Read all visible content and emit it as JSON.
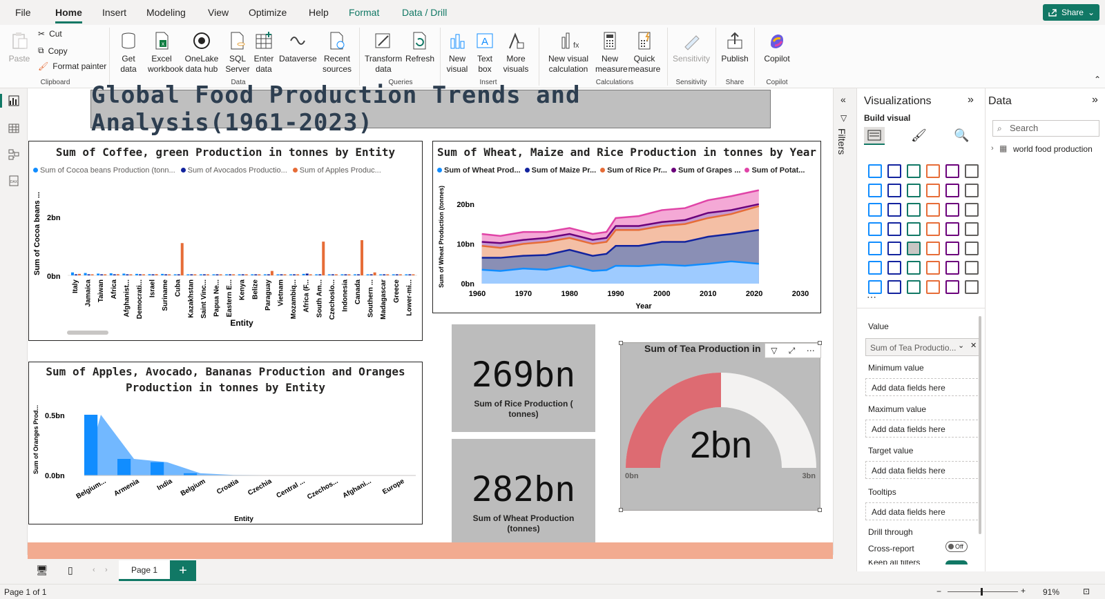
{
  "menu": {
    "items": [
      "File",
      "Home",
      "Insert",
      "Modeling",
      "View",
      "Optimize",
      "Help",
      "Format",
      "Data / Drill"
    ],
    "share_label": "Share"
  },
  "ribbon": {
    "clipboard": {
      "paste": "Paste",
      "cut": "Cut",
      "copy": "Copy",
      "format_painter": "Format painter",
      "group": "Clipboard"
    },
    "data": {
      "get_data": "Get data",
      "excel": "Excel workbook",
      "onelake": "OneLake data hub",
      "sql": "SQL Server",
      "enter": "Enter data",
      "dataverse": "Dataverse",
      "recent": "Recent sources",
      "group": "Data"
    },
    "queries": {
      "transform": "Transform data",
      "refresh": "Refresh",
      "group": "Queries"
    },
    "insert": {
      "new_visual": "New visual",
      "text_box": "Text box",
      "more_visuals": "More visuals",
      "group": "Insert"
    },
    "calculations": {
      "new_visual_calc": "New visual calculation",
      "new_measure": "New measure",
      "quick_measure": "Quick measure",
      "group": "Calculations"
    },
    "sensitivity": {
      "label": "Sensitivity",
      "group": "Sensitivity"
    },
    "share": {
      "publish": "Publish",
      "group": "Share"
    },
    "copilot": {
      "label": "Copilot",
      "group": "Copilot"
    }
  },
  "report": {
    "title": "Global Food Production Trends and Analysis(1961-2023)",
    "coffee_chart": {
      "title": "Sum of Coffee, green Production in tonnes by Entity",
      "legend": [
        "Sum of Cocoa beans Production (tonn...",
        "Sum of Avocados Productio...",
        "Sum of Apples Produc..."
      ],
      "legend_colors": [
        "#118dff",
        "#12239e",
        "#e66c37"
      ],
      "ylabel": "Sum of Cocoa beans ...",
      "xlabel": "Entity",
      "yticks": [
        "2bn",
        "0bn"
      ]
    },
    "wheat_chart": {
      "title": "Sum of Wheat, Maize and Rice Production in tonnes by Year",
      "legend": [
        "Sum of Wheat Prod...",
        "Sum of Maize Pr...",
        "Sum of Rice Pr...",
        "Sum of Grapes ...",
        "Sum of Potat..."
      ],
      "legend_colors": [
        "#118dff",
        "#12239e",
        "#e66c37",
        "#6b007b",
        "#e044a7"
      ],
      "ylabel": "Sum of Wheat Production (tonnes)",
      "xlabel": "Year",
      "yticks": [
        "20bn",
        "10bn",
        "0bn"
      ],
      "xticks": [
        "1960",
        "1970",
        "1980",
        "1990",
        "2000",
        "2010",
        "2020",
        "2030"
      ]
    },
    "apples_chart": {
      "title_line1": "Sum of Apples, Avocado, Bananas Production and Oranges",
      "title_line2": "Production in tonnes by Entity",
      "ylabel": "Sum of Oranges Prod...",
      "xlabel": "Entity",
      "yticks": [
        "0.5bn",
        "0.0bn"
      ]
    },
    "card_rice": {
      "value": "269bn",
      "label": "Sum of Rice  Production ( tonnes)"
    },
    "card_wheat": {
      "value": "282bn",
      "label": "Sum of Wheat Production (tonnes)"
    },
    "gauge": {
      "title": "Sum of Tea Production in",
      "value": "2bn",
      "min": "0bn",
      "max": "3bn"
    }
  },
  "chart_data": [
    {
      "type": "bar",
      "title": "Sum of Coffee, green Production in tonnes by Entity",
      "xlabel": "Entity",
      "ylabel": "Sum of Cocoa beans ...",
      "ylim": [
        0,
        3
      ],
      "categories": [
        "Italy",
        "Jamaica",
        "Taiwan",
        "Africa",
        "Afghanist...",
        "Democrati...",
        "Israel",
        "Suriname",
        "Cuba",
        "Kazakhstan",
        "Saint Vinc...",
        "Papua Ne...",
        "Eastern E...",
        "Kenya",
        "Belize",
        "Paraguay",
        "Vietnam",
        "Mozambiq...",
        "Africa (F...",
        "South Am...",
        "Czechoslo...",
        "Indonesia",
        "Canada",
        "Southern ...",
        "Madagascar",
        "Greece",
        "Lower-mi..."
      ],
      "series": [
        {
          "name": "Sum of Cocoa beans Production (tonn...",
          "values": [
            0.1,
            0.08,
            0.06,
            0.07,
            0.06,
            0.05,
            0.04,
            0.05,
            0.03,
            0.02,
            0.02,
            0.03,
            0.02,
            0.02,
            0.02,
            0.02,
            0.02,
            0.02,
            0.05,
            0.03,
            0.02,
            0.02,
            0.02,
            0.02,
            0.02,
            0.01,
            0.01
          ]
        },
        {
          "name": "Sum of Avocados Productio...",
          "values": [
            0.02,
            0.01,
            0.01,
            0.02,
            0.01,
            0.01,
            0.01,
            0.01,
            0.01,
            0.01,
            0.01,
            0.01,
            0.01,
            0.01,
            0.01,
            0.01,
            0.01,
            0.01,
            0.06,
            0.01,
            0.01,
            0.01,
            0.01,
            0.01,
            0.01,
            0.01,
            0.01
          ]
        },
        {
          "name": "Sum of Apples Produc...",
          "values": [
            0.05,
            0.03,
            0.03,
            0.04,
            0.03,
            0.02,
            0.04,
            0.02,
            1.1,
            0.03,
            0.02,
            0.02,
            0.03,
            0.02,
            0.02,
            0.15,
            0.02,
            0.02,
            0.03,
            1.15,
            0.02,
            0.02,
            1.2,
            0.1,
            0.02,
            0.02,
            0.02
          ]
        }
      ]
    },
    {
      "type": "area",
      "title": "Sum of Wheat, Maize and Rice Production in tonnes by Year",
      "xlabel": "Year",
      "ylabel": "Sum of Wheat Production (tonnes)",
      "xlim": [
        1960,
        2030
      ],
      "ylim": [
        0,
        25
      ],
      "x": [
        1961,
        1965,
        1970,
        1975,
        1980,
        1985,
        1988,
        1990,
        1995,
        2000,
        2005,
        2010,
        2015,
        2021
      ],
      "series": [
        {
          "name": "Sum of Wheat Prod...",
          "values": [
            3.5,
            3.2,
            3.8,
            3.5,
            4.5,
            3.2,
            3.4,
            4.5,
            4.4,
            4.8,
            4.5,
            5.0,
            5.6,
            5.0
          ]
        },
        {
          "name": "Sum of Maize Pr...",
          "values": [
            6.5,
            6.5,
            7.0,
            7.2,
            8.5,
            7.0,
            7.5,
            9.5,
            9.5,
            10.5,
            10.5,
            11.8,
            12.5,
            13.5
          ]
        },
        {
          "name": "Sum of Rice Pr...",
          "values": [
            9.5,
            9.0,
            10.0,
            10.5,
            11.5,
            10.0,
            10.5,
            13.5,
            13.5,
            14.5,
            15.0,
            16.5,
            17.5,
            19.5
          ]
        },
        {
          "name": "Sum of Grapes ...",
          "values": [
            10.5,
            10.2,
            11.0,
            11.5,
            12.5,
            11.0,
            11.5,
            14.5,
            14.5,
            15.5,
            16.0,
            17.8,
            18.5,
            20.0
          ]
        },
        {
          "name": "Sum of Potat...",
          "values": [
            12.5,
            12.0,
            13.0,
            13.0,
            14.0,
            12.5,
            13.0,
            16.5,
            17.0,
            18.5,
            19.0,
            21.0,
            22.0,
            23.5
          ]
        }
      ]
    },
    {
      "type": "area",
      "title": "Sum of Apples, Avocado, Bananas Production and Oranges Production in tonnes by Entity",
      "xlabel": "Entity",
      "ylabel": "Sum of Oranges Prod...",
      "ylim": [
        0,
        0.6
      ],
      "categories": [
        "Belgium...",
        "Armenia",
        "India",
        "Belgium",
        "Croatia",
        "Czechia",
        "Central ...",
        "Czechos...",
        "Afghani...",
        "Europe"
      ],
      "values": [
        0.55,
        0.15,
        0.12,
        0.02,
        0.005,
        0.003,
        0.002,
        0.002,
        0.001,
        0.001
      ]
    }
  ],
  "filters_label": "Filters",
  "viz_pane": {
    "title": "Visualizations",
    "build_visual": "Build visual",
    "wells": [
      {
        "label": "Value",
        "field": "Sum of Tea Productio..."
      },
      {
        "label": "Minimum value",
        "placeholder": "Add data fields here"
      },
      {
        "label": "Maximum value",
        "placeholder": "Add data fields here"
      },
      {
        "label": "Target value",
        "placeholder": "Add data fields here"
      },
      {
        "label": "Tooltips",
        "placeholder": "Add data fields here"
      }
    ],
    "drill_through": "Drill through",
    "cross_report": "Cross-report",
    "cross_report_state": "Off",
    "keep_all_filters": "Keep all filters"
  },
  "data_pane": {
    "title": "Data",
    "search_placeholder": "Search",
    "tables": [
      "world food production"
    ]
  },
  "pages": {
    "tab": "Page 1",
    "add": "+"
  },
  "status": {
    "page_info": "Page 1 of 1",
    "zoom": "91%"
  }
}
